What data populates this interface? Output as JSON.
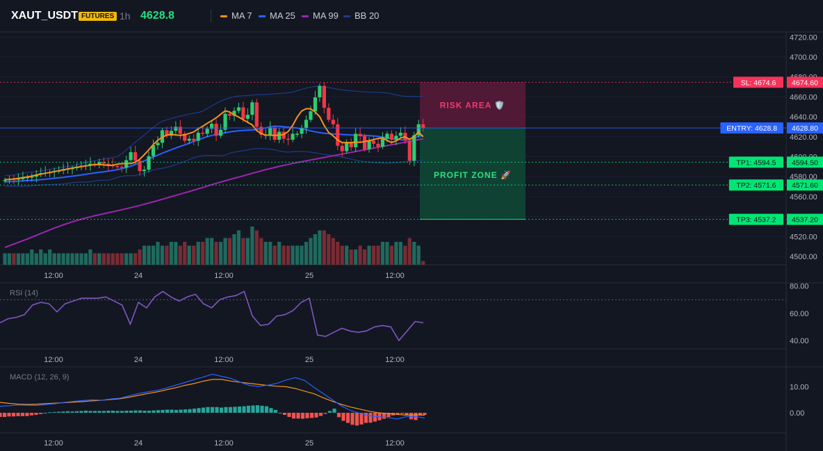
{
  "header": {
    "symbol": "XAUT_USDT",
    "badge": "FUTURES",
    "timeframe": "1h",
    "price": "4628.8",
    "legend": [
      {
        "label": "MA 7",
        "color": "#f7931a"
      },
      {
        "label": "MA 25",
        "color": "#2962ff"
      },
      {
        "label": "MA 99",
        "color": "#9c27b0"
      },
      {
        "label": "BB 20",
        "color": "#1e3a8a"
      }
    ]
  },
  "colors": {
    "up": "#2ecc71",
    "down": "#f23645",
    "risk": "#f7325a",
    "entry": "#2962ff",
    "tp": "#00e676",
    "rsi": "#7e57c2",
    "macd": "#2962ff",
    "signal": "#f7931a",
    "hist_pos": "#26a69a",
    "hist_neg": "#ef5350"
  },
  "chart_data": [
    {
      "type": "candlestick",
      "name": "price",
      "x_ticks": [
        "12:00",
        "24",
        "12:00",
        "25",
        "12:00"
      ],
      "y_ticks": [
        "4500.00",
        "4520.00",
        "4540.00",
        "4560.00",
        "4580.00",
        "4600.00",
        "4620.00",
        "4640.00",
        "4660.00",
        "4680.00",
        "4700.00",
        "4720.00"
      ],
      "ylim": [
        4495,
        4720
      ],
      "close": [
        4576.5,
        4577.5,
        4577.0,
        4578.0,
        4578.5,
        4579.5,
        4580.0,
        4582.0,
        4583.5,
        4584.0,
        4584.5,
        4585.5,
        4586.0,
        4587.5,
        4588.0,
        4588.5,
        4590.0,
        4591.0,
        4591.5,
        4593.0,
        4592.0,
        4594.5,
        4593.0,
        4591.5,
        4590.5,
        4590.0,
        4589.0,
        4596.5,
        4604.5,
        4596.0,
        4585.5,
        4587.0,
        4600.5,
        4611.5,
        4614.0,
        4626.5,
        4621.0,
        4626.0,
        4630.0,
        4623.0,
        4616.0,
        4618.0,
        4616.0,
        4624.0,
        4623.0,
        4628.0,
        4633.0,
        4621.0,
        4627.0,
        4643.0,
        4641.0,
        4646.0,
        4649.5,
        4638.0,
        4642.0,
        4654.5,
        4630.0,
        4622.0,
        4622.0,
        4629.0,
        4617.0,
        4625.0,
        4618.0,
        4617.0,
        4623.0,
        4623.0,
        4628.5,
        4637.0,
        4645.5,
        4659.5,
        4671.0,
        4649.0,
        4637.0,
        4632.5,
        4611.0,
        4605.5,
        4614.0,
        4609.5,
        4623.0,
        4620.5,
        4607.5,
        4616.0,
        4613.0,
        4610.0,
        4618.0,
        4623.0,
        4617.0,
        4621.0,
        4624.0,
        4616.0,
        4596.0,
        4621.5,
        4632.5,
        4628.8
      ],
      "ma": [
        {
          "name": "MA 7",
          "values": [
            4577.0,
            4577.3,
            4577.7,
            4578.3,
            4579.0,
            4579.7,
            4580.6,
            4581.6,
            4582.6,
            4583.4,
            4584.2,
            4585.1,
            4585.9,
            4586.8,
            4587.7,
            4588.6,
            4589.3,
            4590.0,
            4590.8,
            4591.5,
            4592.0,
            4592.1,
            4591.8,
            4591.3,
            4591.4,
            4592.5,
            4593.0,
            4593.1,
            4593.1,
            4594.4,
            4597.5,
            4602.0,
            4606.8,
            4612.2,
            4616.5,
            4619.6,
            4621.6,
            4622.4,
            4621.8,
            4621.4,
            4622.0,
            4623.4,
            4624.8,
            4628.0,
            4630.6,
            4633.4,
            4636.1,
            4639.0,
            4642.6,
            4646.0,
            4644.8,
            4641.9,
            4639.7,
            4637.1,
            4634.5,
            4631.9,
            4626.1,
            4623.2,
            4621.6,
            4621.6,
            4621.3,
            4621.7,
            4622.1,
            4625.3,
            4631.4,
            4639.8,
            4645.8,
            4648.1,
            4648.0,
            4644.8,
            4640.1,
            4631.3,
            4624.4,
            4620.8,
            4616.8,
            4614.1,
            4614.2,
            4614.1,
            4614.6,
            4614.4,
            4615.2,
            4616.1,
            4617.1,
            4618.3,
            4618.9,
            4616.2,
            4614.3,
            4615.9,
            4618.8,
            4620.0,
            4617.4,
            4620.1,
            4624.7,
            4620.0
          ]
        },
        {
          "name": "MA 25",
          "values": [
            4574.7,
            4575.0,
            4575.2,
            4575.5,
            4575.7,
            4576.0,
            4576.3,
            4576.6,
            4577.0,
            4577.4,
            4577.8,
            4578.3,
            4578.8,
            4579.3,
            4579.9,
            4580.5,
            4581.1,
            4581.7,
            4582.4,
            4583.1,
            4583.7,
            4584.3,
            4584.9,
            4585.5,
            4586.2,
            4587.0,
            4588.0,
            4589.2,
            4590.6,
            4592.2,
            4594.0,
            4595.9,
            4597.8,
            4599.7,
            4601.6,
            4603.5,
            4605.3,
            4607.0,
            4608.7,
            4610.3,
            4611.9,
            4613.6,
            4615.3,
            4617.0,
            4618.6,
            4620.1,
            4621.4,
            4622.3,
            4623.1,
            4624.0,
            4624.8,
            4625.5,
            4626.0,
            4626.4,
            4626.6,
            4626.8,
            4627.2,
            4627.9,
            4628.8,
            4629.9,
            4630.6,
            4630.5,
            4630.0,
            4629.6,
            4629.2,
            4628.7,
            4628.0,
            4627.0,
            4625.9,
            4624.9,
            4624.1,
            4623.5,
            4623.1,
            4622.8,
            4622.6,
            4622.3,
            4622.0,
            4621.8,
            4621.6,
            4621.6,
            4621.3,
            4621.0,
            4620.8,
            4620.3,
            4619.6,
            4618.8,
            4618.1,
            4617.4,
            4616.9,
            4616.9,
            4617.4,
            4618.6,
            4620.6,
            4621.3
          ]
        },
        {
          "name": "MA 99",
          "values": [
            4509.0,
            4510.7,
            4512.4,
            4514.1,
            4515.8,
            4517.5,
            4519.3,
            4521.1,
            4523.0,
            4524.8,
            4526.6,
            4528.4,
            4530.0,
            4531.7,
            4533.2,
            4534.7,
            4536.0,
            4537.3,
            4538.5,
            4539.6,
            4540.8,
            4541.8,
            4542.8,
            4543.8,
            4544.8,
            4545.8,
            4546.8,
            4547.9,
            4548.9,
            4550.0,
            4551.1,
            4552.3,
            4553.5,
            4554.7,
            4556.0,
            4557.3,
            4558.6,
            4559.9,
            4561.2,
            4562.5,
            4563.8,
            4565.1,
            4566.4,
            4567.8,
            4569.1,
            4570.5,
            4571.9,
            4573.3,
            4574.6,
            4575.9,
            4577.1,
            4578.4,
            4579.6,
            4580.8,
            4582.1,
            4583.3,
            4584.5,
            4585.8,
            4587.0,
            4588.1,
            4589.2,
            4590.3,
            4591.3,
            4592.2,
            4593.2,
            4594.1,
            4595.0,
            4595.8,
            4596.7,
            4597.5,
            4598.4,
            4599.2,
            4600.1,
            4600.9,
            4601.8,
            4602.6,
            4603.5,
            4604.3,
            4605.2,
            4606.0,
            4606.9,
            4607.7,
            4608.6,
            4609.4,
            4610.3,
            4611.1,
            4612.0,
            4612.8,
            4613.7,
            4614.5,
            4615.4,
            4616.2,
            4617.1,
            4617.8
          ]
        }
      ],
      "bb": {
        "upper": [
          4581.2,
          4581.3,
          4581.6,
          4582.2,
          4583.1,
          4584.0,
          4584.7,
          4585.2,
          4585.8,
          4586.5,
          4587.3,
          4588.1,
          4588.8,
          4589.5,
          4590.2,
          4591.1,
          4592.0,
          4593.0,
          4594.1,
          4595.1,
          4596.0,
          4596.9,
          4597.6,
          4598.4,
          4599.0,
          4600.1,
          4603.0,
          4606.8,
          4610.7,
          4614.5,
          4618.0,
          4621.8,
          4625.6,
          4629.4,
          4632.9,
          4635.6,
          4637.0,
          4638.1,
          4639.5,
          4640.8,
          4641.7,
          4642.7,
          4643.5,
          4644.2,
          4645.6,
          4648.3,
          4650.8,
          4653.5,
          4655.8,
          4657.5,
          4658.9,
          4660.1,
          4660.9,
          4661.1,
          4661.4,
          4661.8,
          4662.1,
          4662.3,
          4662.4,
          4662.6,
          4663.0,
          4663.3,
          4663.6,
          4664.0,
          4664.8,
          4666.1,
          4667.5,
          4668.8,
          4669.8,
          4670.4,
          4670.4,
          4670.0,
          4669.3,
          4668.5,
          4667.7,
          4666.9,
          4666.5,
          4666.1,
          4665.7,
          4665.3,
          4665.0,
          4664.7,
          4664.6,
          4664.6,
          4664.4,
          4663.9,
          4663.0,
          4662.0,
          4661.1,
          4660.6,
          4660.5,
          4660.5,
          4660.4,
          4660.3
        ],
        "lower": [
          4570.2,
          4570.3,
          4570.3,
          4570.3,
          4570.3,
          4570.4,
          4570.8,
          4571.3,
          4571.6,
          4571.8,
          4572.0,
          4572.2,
          4572.4,
          4572.6,
          4573.2,
          4574.0,
          4574.5,
          4574.5,
          4574.5,
          4575.0,
          4575.8,
          4576.3,
          4576.4,
          4576.5,
          4577.6,
          4579.2,
          4580.5,
          4581.0,
          4580.9,
          4581.2,
          4582.1,
          4583.5,
          4585.0,
          4586.6,
          4587.8,
          4588.4,
          4589.3,
          4590.6,
          4592.1,
          4593.6,
          4595.3,
          4597.1,
          4598.8,
          4600.2,
          4601.1,
          4601.4,
          4601.3,
          4601.1,
          4601.0,
          4601.6,
          4603.3,
          4604.6,
          4605.3,
          4606.0,
          4606.8,
          4607.7,
          4608.3,
          4608.2,
          4607.9,
          4607.6,
          4606.8,
          4605.8,
          4604.9,
          4604.6,
          4604.9,
          4605.2,
          4605.2,
          4605.0,
          4604.5,
          4603.8,
          4603.0,
          4602.3,
          4601.8,
          4601.2,
          4600.5,
          4599.6,
          4598.6,
          4597.6,
          4596.6,
          4595.7,
          4595.0,
          4594.6,
          4594.3,
          4594.0,
          4593.7,
          4593.6,
          4593.8,
          4594.1,
          4594.5,
          4595.0,
          4595.5,
          4595.8,
          4596.0,
          4596.3
        ]
      },
      "volume": [
        3,
        3,
        3,
        3,
        3,
        3,
        4,
        3,
        4,
        3,
        4,
        3,
        3,
        3,
        3,
        3,
        3,
        3,
        3,
        4,
        3,
        3,
        3,
        3,
        3,
        3,
        3,
        3,
        3,
        3,
        4,
        5,
        5,
        5,
        6,
        5,
        5,
        6,
        6,
        5,
        6,
        5,
        5,
        6,
        6,
        7,
        7,
        6,
        6,
        7,
        7,
        8,
        9,
        7,
        7,
        10,
        9,
        7,
        6,
        6,
        5,
        6,
        5,
        5,
        5,
        5,
        5,
        6,
        7,
        8,
        9,
        9,
        8,
        7,
        6,
        5,
        5,
        4,
        4,
        5,
        4,
        5,
        5,
        5,
        6,
        6,
        5,
        6,
        6,
        5,
        7,
        6,
        5,
        1
      ],
      "levels": [
        {
          "kind": "sl",
          "price": 4674.6,
          "tag": "SL: 4674.6",
          "axis": "4674.60"
        },
        {
          "kind": "entry",
          "price": 4628.8,
          "tag": "ENTRY: 4628.8",
          "axis": "4628.80"
        },
        {
          "kind": "tp",
          "price": 4594.5,
          "tag": "TP1: 4594.5",
          "axis": "4594.50"
        },
        {
          "kind": "tp",
          "price": 4571.6,
          "tag": "TP2: 4571.6",
          "axis": "4571.60"
        },
        {
          "kind": "tp",
          "price": 4537.2,
          "tag": "TP3: 4537.2",
          "axis": "4537.20"
        }
      ],
      "zones": [
        {
          "label": "RISK AREA 🛡️",
          "from": 4628.8,
          "to": 4674.6
        },
        {
          "label": "PROFIT ZONE 🚀",
          "from": 4537.2,
          "to": 4628.8
        }
      ]
    },
    {
      "type": "line",
      "name": "RSI (14)",
      "ylim": [
        35,
        82
      ],
      "y_ticks": [
        "40.00",
        "60.00",
        "80.00"
      ],
      "threshold": 70,
      "x_ticks": [
        "12:00",
        "24",
        "12:00",
        "25",
        "12:00"
      ],
      "values": [
        53,
        56,
        57,
        59,
        66,
        68,
        67,
        61,
        67,
        69,
        71,
        71,
        71,
        72,
        69,
        66,
        52,
        68,
        64,
        72,
        76,
        72,
        69,
        72,
        74,
        67,
        64,
        70,
        72,
        73,
        76,
        58,
        51,
        52,
        58,
        59,
        62,
        68,
        71,
        44,
        43,
        46,
        49,
        47,
        46,
        47,
        50,
        51,
        50,
        40,
        47,
        54,
        53
      ]
    },
    {
      "type": "line",
      "name": "MACD (12, 26, 9)",
      "ylim": [
        -8,
        17
      ],
      "y_ticks": [
        "0.00",
        "10.00"
      ],
      "x_ticks": [
        "12:00",
        "24",
        "12:00",
        "25",
        "12:00"
      ],
      "macd": [
        2.5,
        2.7,
        3.0,
        2.9,
        2.8,
        3.2,
        3.5,
        4.0,
        4.4,
        4.7,
        5.0,
        4.8,
        5.3,
        5.6,
        6.5,
        7.4,
        8.0,
        8.6,
        9.5,
        10.6,
        11.6,
        12.7,
        13.7,
        14.8,
        14.0,
        13.2,
        11.8,
        10.5,
        10.1,
        10.6,
        11.3,
        12.6,
        13.5,
        12.4,
        9.8,
        7.4,
        5.0,
        2.6,
        0.8,
        -0.2,
        -1.1,
        -1.5,
        -1.8,
        -2.4,
        -1.5,
        -1.4,
        -2.0
      ],
      "signal": [
        4.0,
        3.6,
        3.3,
        3.2,
        3.3,
        3.5,
        3.7,
        3.9,
        4.1,
        4.3,
        4.6,
        4.8,
        5.1,
        5.4,
        6.0,
        6.7,
        7.4,
        8.0,
        8.8,
        9.6,
        10.5,
        11.2,
        12.1,
        12.8,
        12.8,
        12.2,
        11.7,
        11.3,
        10.9,
        10.5,
        10.2,
        10.0,
        9.3,
        8.3,
        7.3,
        5.8,
        4.4,
        3.2,
        2.2,
        1.4,
        0.6,
        0.0,
        -0.3,
        -0.6,
        -0.9,
        -0.8,
        -0.9
      ],
      "histogram": [
        -1.6,
        -1.6,
        -1.4,
        -1.4,
        -1.3,
        -1.3,
        -1.3,
        -1.0,
        -0.8,
        -0.5,
        0.0,
        0.2,
        0.3,
        0.4,
        0.5,
        0.6,
        0.5,
        0.6,
        0.7,
        0.8,
        0.7,
        0.7,
        0.7,
        0.7,
        0.8,
        0.8,
        0.7,
        0.7,
        0.8,
        0.8,
        0.9,
        0.9,
        0.8,
        0.8,
        0.9,
        1.0,
        1.1,
        1.2,
        1.2,
        1.1,
        1.2,
        1.3,
        1.4,
        1.6,
        1.8,
        2.0,
        2.2,
        2.2,
        2.2,
        2.0,
        2.2,
        2.2,
        2.3,
        2.4,
        2.5,
        2.7,
        2.8,
        2.9,
        2.7,
        2.5,
        1.8,
        1.1,
        0.0,
        -0.8,
        -1.6,
        -2.2,
        -2.2,
        -2.3,
        -2.1,
        -2.0,
        -1.8,
        -1.2,
        -0.4,
        0.7,
        1.6,
        -1.7,
        -3.1,
        -3.9,
        -4.6,
        -4.9,
        -4.5,
        -3.9,
        -3.8,
        -3.4,
        -2.9,
        -2.3,
        -1.6,
        -1.0,
        -0.6,
        -0.4,
        -1.0,
        -2.5,
        -2.8,
        -1.0,
        -0.8
      ]
    }
  ]
}
